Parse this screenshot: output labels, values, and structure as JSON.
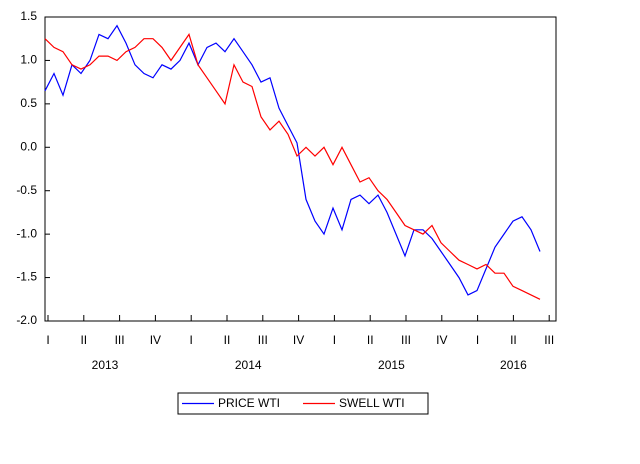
{
  "chart_data": {
    "type": "line",
    "quarters": [
      "I",
      "II",
      "III",
      "IV",
      "I",
      "II",
      "III",
      "IV",
      "I",
      "II",
      "III",
      "IV",
      "I",
      "II",
      "III"
    ],
    "years": [
      "2013",
      "2014",
      "2015",
      "2016"
    ],
    "ylim": [
      -2.0,
      1.5
    ],
    "yticks": [
      1.5,
      {
        "value": 1.0,
        "label": "1.0"
      },
      0.5,
      {
        "value": 0.0,
        "label": "0.0"
      },
      -0.5,
      {
        "value": -1.0,
        "label": "-1.0"
      },
      -1.5,
      {
        "value": -2.0,
        "label": "-2.0"
      }
    ],
    "legend": "bottom",
    "series": [
      {
        "name": "PRICE WTI",
        "color": "#0000ff",
        "values": [
          0.65,
          0.85,
          0.6,
          0.95,
          0.85,
          1.0,
          1.3,
          1.25,
          1.4,
          1.2,
          0.95,
          0.85,
          0.8,
          0.95,
          0.9,
          1.0,
          1.2,
          0.95,
          1.15,
          1.2,
          1.1,
          1.25,
          1.1,
          0.95,
          0.75,
          0.8,
          0.45,
          0.25,
          0.05,
          -0.6,
          -0.85,
          -1.0,
          -0.7,
          -0.95,
          -0.6,
          -0.55,
          -0.65,
          -0.55,
          -0.75,
          -1.0,
          -1.25,
          -0.95,
          -0.95,
          -1.05,
          -1.2,
          -1.35,
          -1.5,
          -1.7,
          -1.65,
          -1.4,
          -1.15,
          -1.0,
          -0.85,
          -0.8,
          -0.95,
          -1.2
        ]
      },
      {
        "name": "SWELL WTI",
        "color": "#ff0000",
        "values": [
          1.25,
          1.15,
          1.1,
          0.95,
          0.9,
          0.95,
          1.05,
          1.05,
          1.0,
          1.1,
          1.15,
          1.25,
          1.25,
          1.15,
          1.0,
          1.15,
          1.3,
          0.95,
          0.8,
          0.65,
          0.5,
          0.95,
          0.75,
          0.7,
          0.35,
          0.2,
          0.3,
          0.15,
          -0.1,
          0.0,
          -0.1,
          0.0,
          -0.2,
          0.0,
          -0.2,
          -0.4,
          -0.35,
          -0.5,
          -0.6,
          -0.75,
          -0.9,
          -0.95,
          -1.0,
          -0.9,
          -1.1,
          -1.2,
          -1.3,
          -1.35,
          -1.4,
          -1.35,
          -1.45,
          -1.45,
          -1.6,
          -1.65,
          -1.7,
          -1.75
        ]
      }
    ]
  }
}
